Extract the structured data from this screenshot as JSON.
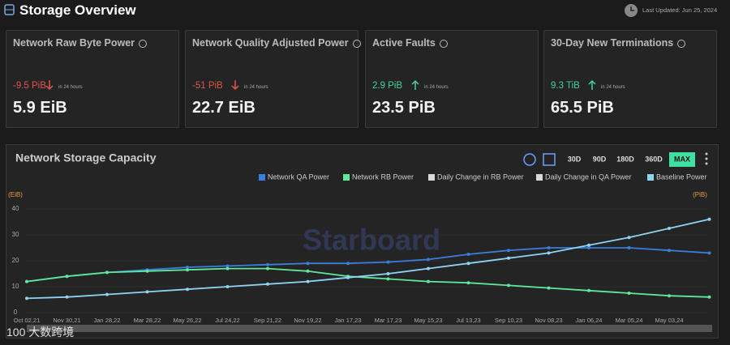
{
  "header": {
    "title": "Storage Overview",
    "last_updated": "Last Updated: Jun 25, 2024"
  },
  "cards": [
    {
      "title": "Network Raw Byte Power",
      "change": "-9.5 PiB",
      "note": "in 24 hours",
      "value": "5.9 EiB"
    },
    {
      "title": "Network Quality Adjusted Power",
      "change": "-51 PiB",
      "note": "in 24 hours",
      "value": "22.7 EiB"
    },
    {
      "title": "Active Faults",
      "change": "2.9 PiB",
      "note": "in 24 hours",
      "value": "23.5 PiB"
    },
    {
      "title": "30-Day New Terminations",
      "change": "9.3 TiB",
      "note": "in 24 hours",
      "value": "65.5 PiB"
    }
  ],
  "ranges": [
    "30D",
    "90D",
    "180D",
    "360D",
    "MAX"
  ],
  "watermark": {
    "brand": "Starboard",
    "site": "100 大数跨境"
  },
  "chart_data": {
    "type": "line",
    "title": "Network Storage Capacity",
    "y_label": "(EiB)",
    "y2_label": "(PiB)",
    "categories": [
      "Oct 02,21",
      "Nov 30,21",
      "Jan 28,22",
      "Mar 28,22",
      "May 26,22",
      "Jul 24,22",
      "Sep 21,22",
      "Nov 19,22",
      "Jan 17,23",
      "Mar 17,23",
      "May 15,23",
      "Jul 13,23",
      "Sep 10,23",
      "Nov 08,23",
      "Jan 06,24",
      "Mar 05,24",
      "May 03,24",
      null
    ],
    "series": [
      {
        "name": "Network QA Power",
        "color": "#3b7ddd",
        "values": [
          12,
          14,
          15.5,
          16.5,
          17.5,
          18,
          18.5,
          19,
          19,
          19.5,
          20.5,
          22.5,
          24,
          25,
          25,
          25,
          24,
          23
        ]
      },
      {
        "name": "Network RB Power",
        "color": "#5ee89a",
        "values": [
          12,
          14,
          15.5,
          16,
          16.5,
          17,
          17,
          16,
          14,
          13,
          12,
          11.5,
          10.5,
          9.5,
          8.5,
          7.5,
          6.5,
          6
        ]
      },
      {
        "name": "Daily Change in RB Power",
        "color": "#d9d9d9",
        "axis": "y2"
      },
      {
        "name": "Daily Change in QA Power",
        "color": "#d9d9d9",
        "axis": "y2"
      },
      {
        "name": "Baseline Power",
        "color": "#8fd3f4",
        "values": [
          5.5,
          6,
          7,
          8,
          9,
          10,
          11,
          12,
          13.5,
          15,
          17,
          19,
          21,
          23,
          26,
          29,
          32.5,
          36
        ]
      }
    ],
    "ylim": [
      0,
      40
    ],
    "yticks": [
      0,
      10,
      20,
      30,
      40
    ],
    "grid": true
  }
}
